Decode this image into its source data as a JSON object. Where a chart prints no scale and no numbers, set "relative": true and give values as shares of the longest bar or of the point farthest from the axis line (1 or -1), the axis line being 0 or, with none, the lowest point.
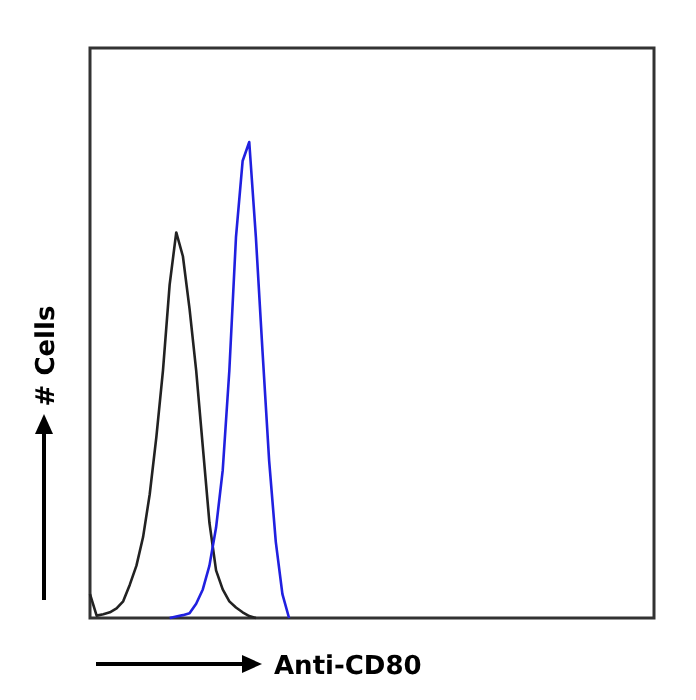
{
  "chart_data": {
    "type": "line",
    "relative": true,
    "xlabel": "Anti-CD80",
    "ylabel": "# Cells",
    "marker": "none",
    "line_style": "solid",
    "categories": [
      null,
      null,
      null,
      null,
      null,
      null,
      null,
      null,
      null,
      null,
      null,
      null,
      null,
      null,
      null,
      null,
      null,
      null,
      null,
      null,
      null,
      null,
      null,
      null,
      null,
      null,
      null,
      null,
      null,
      null,
      null,
      null,
      null,
      null,
      null,
      null,
      null,
      null,
      null,
      null,
      null,
      null,
      null,
      null,
      null,
      null,
      null,
      null,
      null,
      null,
      null,
      null,
      null,
      null,
      null,
      null,
      null,
      null,
      null,
      null,
      null,
      null,
      null,
      null,
      null,
      null,
      null,
      null,
      null,
      null,
      null,
      null,
      null,
      null,
      null,
      null,
      null,
      null,
      null,
      null,
      null,
      null,
      null,
      null,
      null,
      null
    ],
    "series": [
      {
        "color": "#222222",
        "values": [
          0.05,
          0.005,
          0.008,
          0.012,
          0.02,
          0.035,
          0.07,
          0.11,
          0.17,
          0.26,
          0.38,
          0.52,
          0.7,
          0.81,
          0.76,
          0.65,
          0.52,
          0.36,
          0.2,
          0.1,
          0.06,
          0.035,
          0.022,
          0.012,
          0.004,
          0,
          null,
          null,
          null,
          null,
          null,
          null,
          null,
          null,
          null,
          null,
          null,
          null,
          null,
          null,
          null,
          null,
          null,
          null,
          null,
          null,
          null,
          null,
          null,
          null,
          null,
          null,
          null,
          null,
          null,
          null,
          null,
          null,
          null,
          null,
          null,
          null,
          null,
          null,
          null,
          null,
          null,
          null,
          null,
          null,
          null,
          null,
          null,
          null,
          null,
          null,
          null,
          null,
          null,
          null,
          null,
          null,
          null,
          null,
          null,
          null
        ]
      },
      {
        "color": "#2020e0",
        "values": [
          null,
          null,
          null,
          null,
          null,
          null,
          null,
          null,
          null,
          null,
          null,
          null,
          0,
          0.003,
          0.006,
          0.01,
          0.03,
          0.06,
          0.11,
          0.19,
          0.31,
          0.52,
          0.8,
          0.96,
          1,
          0.8,
          0.56,
          0.33,
          0.16,
          0.05,
          0,
          null,
          null,
          null,
          null,
          null,
          null,
          null,
          null,
          null,
          null,
          null,
          null,
          null,
          null,
          null,
          null,
          null,
          null,
          null,
          null,
          null,
          null,
          null,
          null,
          null,
          null,
          null,
          null,
          null,
          null,
          null,
          null,
          null,
          null,
          null,
          null,
          null,
          null,
          null,
          null,
          null,
          null,
          null,
          null,
          null,
          null,
          null,
          null,
          null,
          null,
          null,
          null,
          null,
          null,
          null
        ]
      }
    ]
  }
}
